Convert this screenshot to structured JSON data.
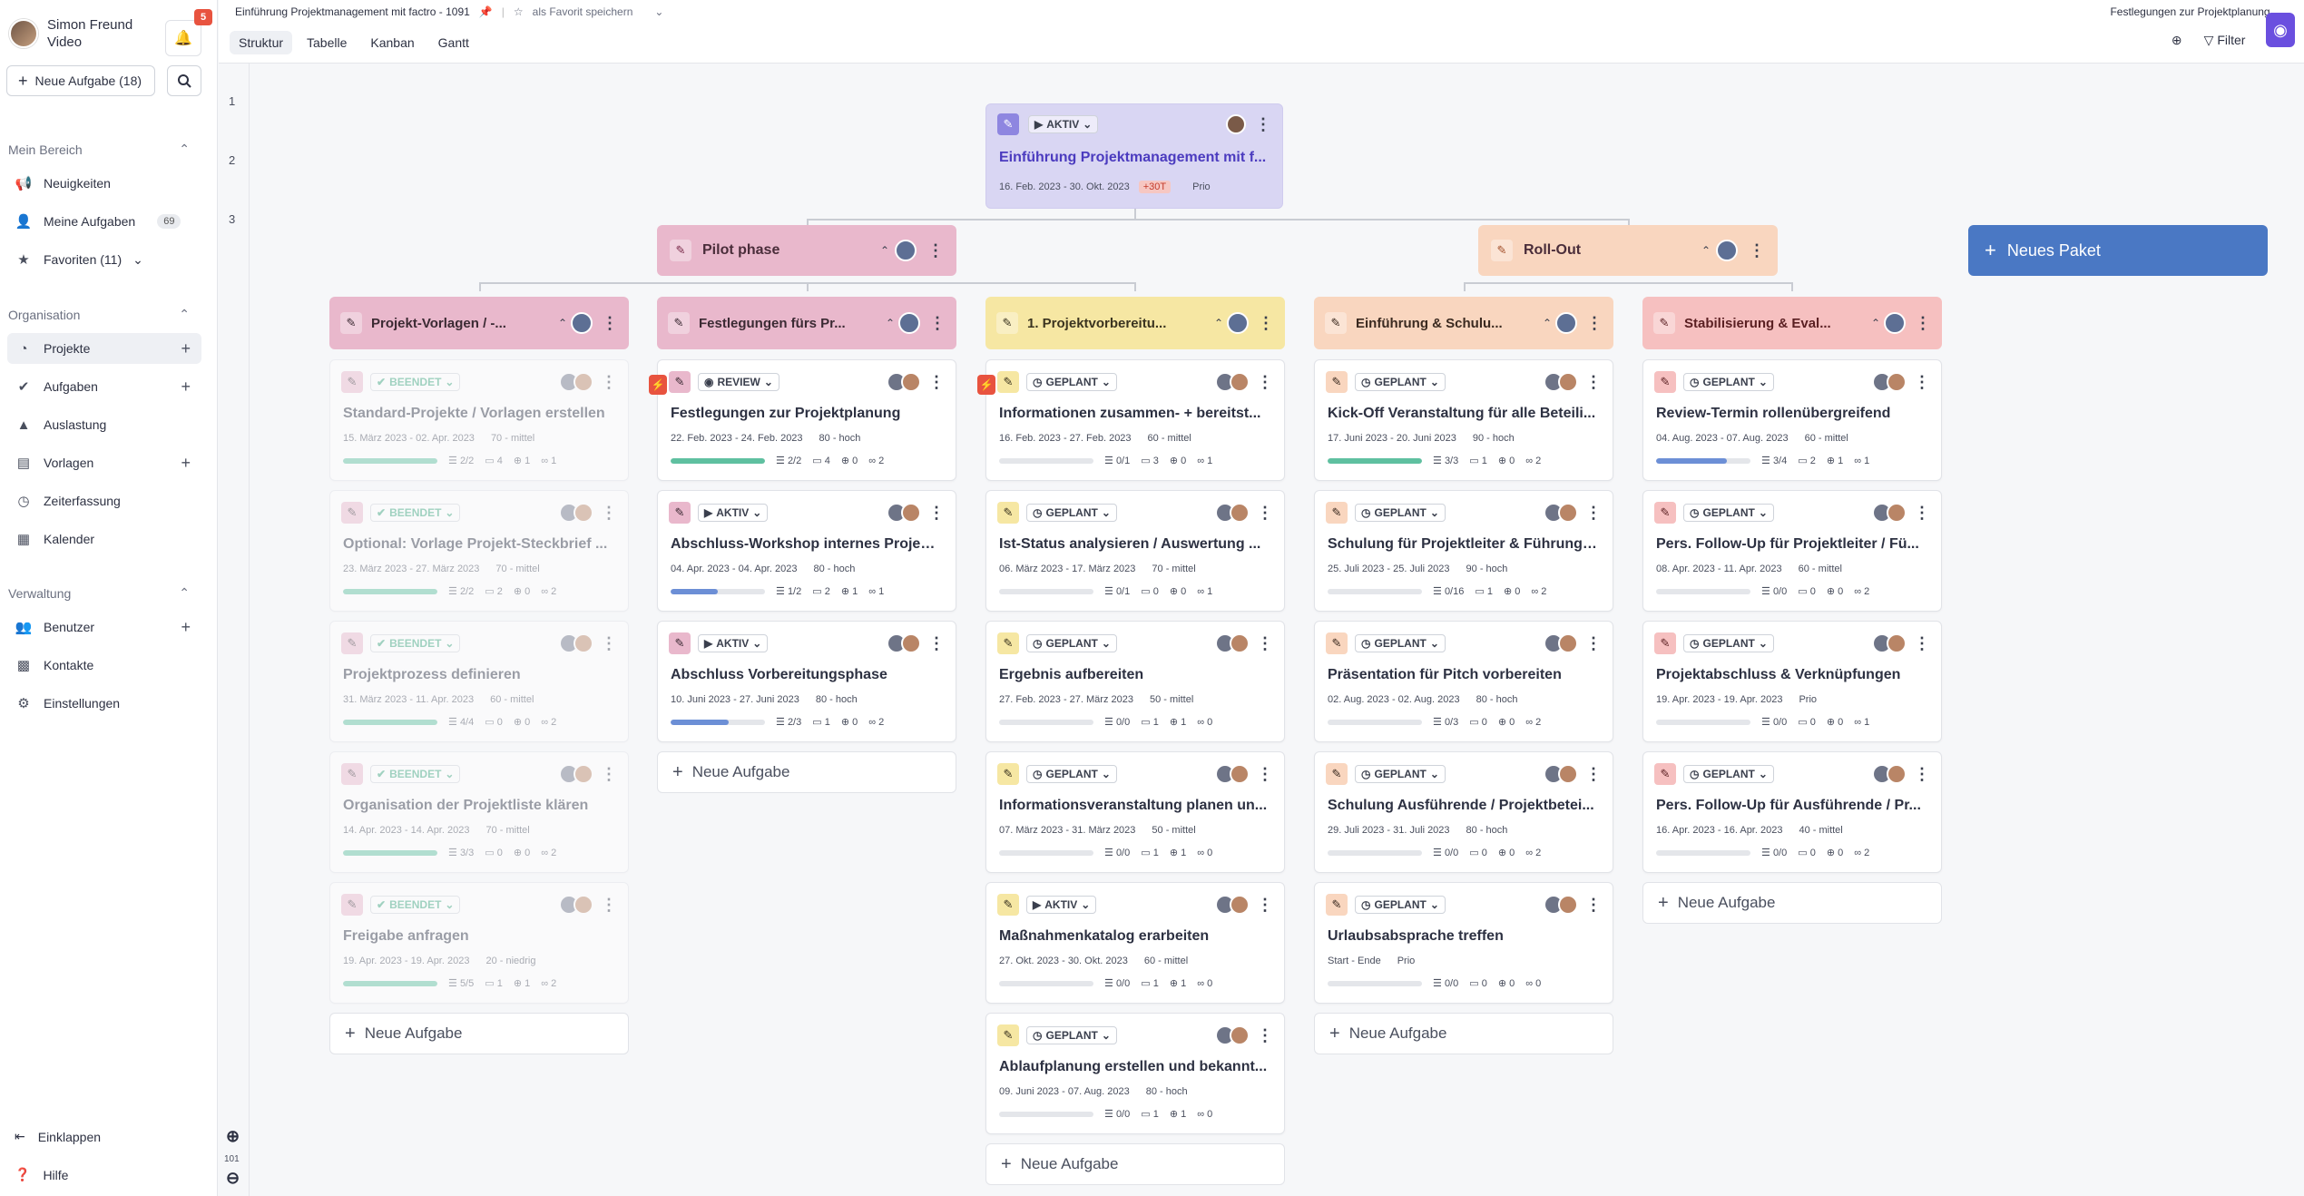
{
  "user": {
    "name_line1": "Simon Freund",
    "name_line2": "Video",
    "notifications": "5"
  },
  "sidebar": {
    "new_task": "Neue Aufgabe (18)",
    "sections": {
      "mein_bereich": "Mein Bereich",
      "organisation": "Organisation",
      "verwaltung": "Verwaltung"
    },
    "items": {
      "neuigkeiten": "Neuigkeiten",
      "meine_aufgaben": "Meine Aufgaben",
      "meine_aufgaben_count": "69",
      "favoriten": "Favoriten (11)",
      "projekte": "Projekte",
      "aufgaben": "Aufgaben",
      "auslastung": "Auslastung",
      "vorlagen": "Vorlagen",
      "zeiterfassung": "Zeiterfassung",
      "kalender": "Kalender",
      "benutzer": "Benutzer",
      "kontakte": "Kontakte",
      "einstellungen": "Einstellungen"
    },
    "einklappen": "Einklappen",
    "hilfe": "Hilfe"
  },
  "gutter": {
    "levels": [
      "1",
      "2",
      "3"
    ],
    "zoom": "101"
  },
  "topbar": {
    "breadcrumb": "Einführung Projektmanagement mit factro - 1091",
    "favorite": "als Favorit speichern",
    "tabs": [
      "Struktur",
      "Tabelle",
      "Kanban",
      "Gantt"
    ],
    "right_select": "Festlegungen zur Projektplanung",
    "filter": "Filter"
  },
  "root": {
    "status": "AKTIV",
    "title": "Einführung Projektmanagement mit f...",
    "dates": "16. Feb. 2023 - 30. Okt. 2023",
    "late": "+30T",
    "prio": "Prio"
  },
  "phases": [
    {
      "title": "Pilot phase"
    },
    {
      "title": "Roll-Out"
    }
  ],
  "new_package": "Neues Paket",
  "add_task_label": "Neue Aufgabe",
  "packages": [
    {
      "title": "Projekt-Vorlagen / -...",
      "color": "#e9b8cc",
      "text": "#3b2a33",
      "tasks": [
        {
          "status": "BEENDET",
          "title": "Standard-Projekte / Vorlagen erstellen",
          "dates": "15. März 2023 - 02. Apr. 2023",
          "prio": "70 - mittel",
          "checks": "2/2",
          "comments": "4",
          "links_a": "1",
          "links_b": "1",
          "progress": 1.0,
          "done": true
        },
        {
          "status": "BEENDET",
          "title": "Optional: Vorlage Projekt-Steckbrief ...",
          "dates": "23. März 2023 - 27. März 2023",
          "prio": "70 - mittel",
          "checks": "2/2",
          "comments": "2",
          "links_a": "0",
          "links_b": "2",
          "progress": 1.0,
          "done": true
        },
        {
          "status": "BEENDET",
          "title": "Projektprozess definieren",
          "dates": "31. März 2023 - 11. Apr. 2023",
          "prio": "60 - mittel",
          "checks": "4/4",
          "comments": "0",
          "links_a": "0",
          "links_b": "2",
          "progress": 1.0,
          "done": true
        },
        {
          "status": "BEENDET",
          "title": "Organisation der Projektliste klären",
          "dates": "14. Apr. 2023 - 14. Apr. 2023",
          "prio": "70 - mittel",
          "checks": "3/3",
          "comments": "0",
          "links_a": "0",
          "links_b": "2",
          "progress": 1.0,
          "done": true
        },
        {
          "status": "BEENDET",
          "title": "Freigabe anfragen",
          "dates": "19. Apr. 2023 - 19. Apr. 2023",
          "prio": "20 - niedrig",
          "checks": "5/5",
          "comments": "1",
          "links_a": "1",
          "links_b": "2",
          "progress": 1.0,
          "done": true
        }
      ]
    },
    {
      "title": "Festlegungen fürs Pr...",
      "color": "#e9b8cc",
      "text": "#3b2a33",
      "tasks": [
        {
          "status": "REVIEW",
          "title": "Festlegungen zur Projektplanung",
          "dates": "22. Feb. 2023 - 24. Feb. 2023",
          "prio": "80 - hoch",
          "checks": "2/2",
          "comments": "4",
          "links_a": "0",
          "links_b": "2",
          "progress": 1.0,
          "urgent": true
        },
        {
          "status": "AKTIV",
          "title": "Abschluss-Workshop internes Projekt...",
          "dates": "04. Apr. 2023 - 04. Apr. 2023",
          "prio": "80 - hoch",
          "checks": "1/2",
          "comments": "2",
          "links_a": "1",
          "links_b": "1",
          "progress": 0.5
        },
        {
          "status": "AKTIV",
          "title": "Abschluss Vorbereitungsphase",
          "dates": "10. Juni 2023 - 27. Juni 2023",
          "prio": "80 - hoch",
          "checks": "2/3",
          "comments": "1",
          "links_a": "0",
          "links_b": "2",
          "progress": 0.62
        }
      ]
    },
    {
      "title": "1. Projektvorbereitu...",
      "color": "#f6e7a3",
      "text": "#3b3420",
      "tasks": [
        {
          "status": "GEPLANT",
          "title": "Informationen zusammen- + bereitst...",
          "dates": "16. Feb. 2023 - 27. Feb. 2023",
          "prio": "60 - mittel",
          "checks": "0/1",
          "comments": "3",
          "links_a": "0",
          "links_b": "1",
          "progress": 0,
          "urgent": true
        },
        {
          "status": "GEPLANT",
          "title": "Ist-Status analysieren / Auswertung ...",
          "dates": "06. März 2023 - 17. März 2023",
          "prio": "70 - mittel",
          "checks": "0/1",
          "comments": "0",
          "links_a": "0",
          "links_b": "1",
          "progress": 0
        },
        {
          "status": "GEPLANT",
          "title": "Ergebnis aufbereiten",
          "dates": "27. Feb. 2023 - 27. März 2023",
          "prio": "50 - mittel",
          "checks": "0/0",
          "comments": "1",
          "links_a": "1",
          "links_b": "0",
          "progress": 0
        },
        {
          "status": "GEPLANT",
          "title": "Informationsveranstaltung planen un...",
          "dates": "07. März 2023 - 31. März 2023",
          "prio": "50 - mittel",
          "checks": "0/0",
          "comments": "1",
          "links_a": "1",
          "links_b": "0",
          "progress": 0
        },
        {
          "status": "AKTIV",
          "title": "Maßnahmenkatalog erarbeiten",
          "dates": "27. Okt. 2023 - 30. Okt. 2023",
          "prio": "60 - mittel",
          "checks": "0/0",
          "comments": "1",
          "links_a": "1",
          "links_b": "0",
          "progress": 0
        },
        {
          "status": "GEPLANT",
          "title": "Ablaufplanung erstellen und bekannt...",
          "dates": "09. Juni 2023 - 07. Aug. 2023",
          "prio": "80 - hoch",
          "checks": "0/0",
          "comments": "1",
          "links_a": "1",
          "links_b": "0",
          "progress": 0
        }
      ]
    },
    {
      "title": "Einführung & Schulu...",
      "color": "#f9d6bf",
      "text": "#3b2a20",
      "tasks": [
        {
          "status": "GEPLANT",
          "title": "Kick-Off Veranstaltung für alle Beteili...",
          "dates": "17. Juni 2023 - 20. Juni 2023",
          "prio": "90 - hoch",
          "checks": "3/3",
          "comments": "1",
          "links_a": "0",
          "links_b": "2",
          "progress": 1.0
        },
        {
          "status": "GEPLANT",
          "title": "Schulung für Projektleiter & Führungs...",
          "dates": "25. Juli 2023 - 25. Juli 2023",
          "prio": "90 - hoch",
          "checks": "0/16",
          "comments": "1",
          "links_a": "0",
          "links_b": "2",
          "progress": 0
        },
        {
          "status": "GEPLANT",
          "title": "Präsentation für Pitch vorbereiten",
          "dates": "02. Aug. 2023 - 02. Aug. 2023",
          "prio": "80 - hoch",
          "checks": "0/3",
          "comments": "0",
          "links_a": "0",
          "links_b": "2",
          "progress": 0
        },
        {
          "status": "GEPLANT",
          "title": "Schulung Ausführende / Projektbetei...",
          "dates": "29. Juli 2023 - 31. Juli 2023",
          "prio": "80 - hoch",
          "checks": "0/0",
          "comments": "0",
          "links_a": "0",
          "links_b": "2",
          "progress": 0
        },
        {
          "status": "GEPLANT",
          "title": "Urlaubsabsprache treffen",
          "dates": "Start - Ende",
          "prio": "Prio",
          "checks": "0/0",
          "comments": "0",
          "links_a": "0",
          "links_b": "0",
          "progress": 0
        }
      ]
    },
    {
      "title": "Stabilisierung & Eval...",
      "color": "#f6c0c0",
      "text": "#5a1f22",
      "tasks": [
        {
          "status": "GEPLANT",
          "title": "Review-Termin rollenübergreifend",
          "dates": "04. Aug. 2023 - 07. Aug. 2023",
          "prio": "60 - mittel",
          "checks": "3/4",
          "comments": "2",
          "links_a": "1",
          "links_b": "1",
          "progress": 0.75
        },
        {
          "status": "GEPLANT",
          "title": "Pers. Follow-Up für Projektleiter / Fü...",
          "dates": "08. Apr. 2023 - 11. Apr. 2023",
          "prio": "60 - mittel",
          "checks": "0/0",
          "comments": "0",
          "links_a": "0",
          "links_b": "2",
          "progress": 0
        },
        {
          "status": "GEPLANT",
          "title": "Projektabschluss & Verknüpfungen",
          "dates": "19. Apr. 2023 - 19. Apr. 2023",
          "prio": "Prio",
          "checks": "0/0",
          "comments": "0",
          "links_a": "0",
          "links_b": "1",
          "progress": 0
        },
        {
          "status": "GEPLANT",
          "title": "Pers. Follow-Up für Ausführende / Pr...",
          "dates": "16. Apr. 2023 - 16. Apr. 2023",
          "prio": "40 - mittel",
          "checks": "0/0",
          "comments": "0",
          "links_a": "0",
          "links_b": "2",
          "progress": 0
        }
      ]
    }
  ],
  "colors": {
    "done_bar": "#5fc0a0",
    "active_bar": "#6c8fd6",
    "phase_pink": "#e9b8cc",
    "phase_orange": "#f9d6bf",
    "root": "#d9d6f3",
    "new_package": "#4a78c4"
  }
}
